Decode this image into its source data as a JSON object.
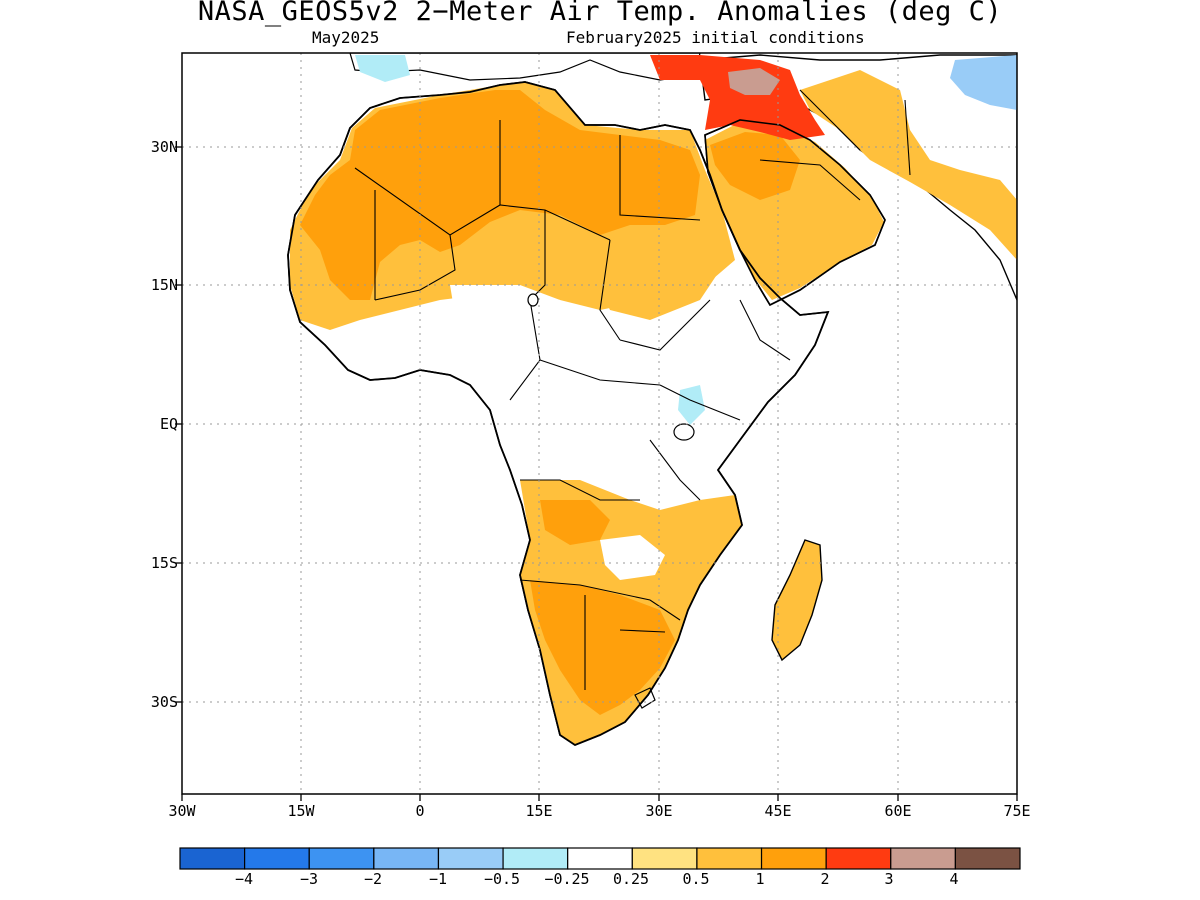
{
  "title": "NASA_GEOS5v2 2−Meter Air Temp. Anomalies (deg C)",
  "subtitle_left": "May2025",
  "subtitle_right": "February2025 initial conditions",
  "map": {
    "region": "Africa",
    "lon_range": [
      -30,
      75
    ],
    "lat_range": [
      -40,
      40
    ],
    "gridlines": true,
    "x_ticks": [
      "30W",
      "15W",
      "0",
      "15E",
      "30E",
      "45E",
      "60E",
      "75E"
    ],
    "y_ticks": [
      "30N",
      "15N",
      "EQ",
      "15S",
      "30S"
    ]
  },
  "colorbar": {
    "colors": [
      "#1a64d2",
      "#2479ea",
      "#3d93f2",
      "#78b6f5",
      "#99ccf7",
      "#b1ecf7",
      "#ffffff",
      "#ffe281",
      "#ffc03c",
      "#ffa00c",
      "#ff3b11",
      "#c99c90",
      "#7b5243"
    ],
    "labels": [
      "−4",
      "−3",
      "−2",
      "−1",
      "−0.5",
      "−0.25",
      "0.25",
      "0.5",
      "1",
      "2",
      "3",
      "4"
    ]
  }
}
